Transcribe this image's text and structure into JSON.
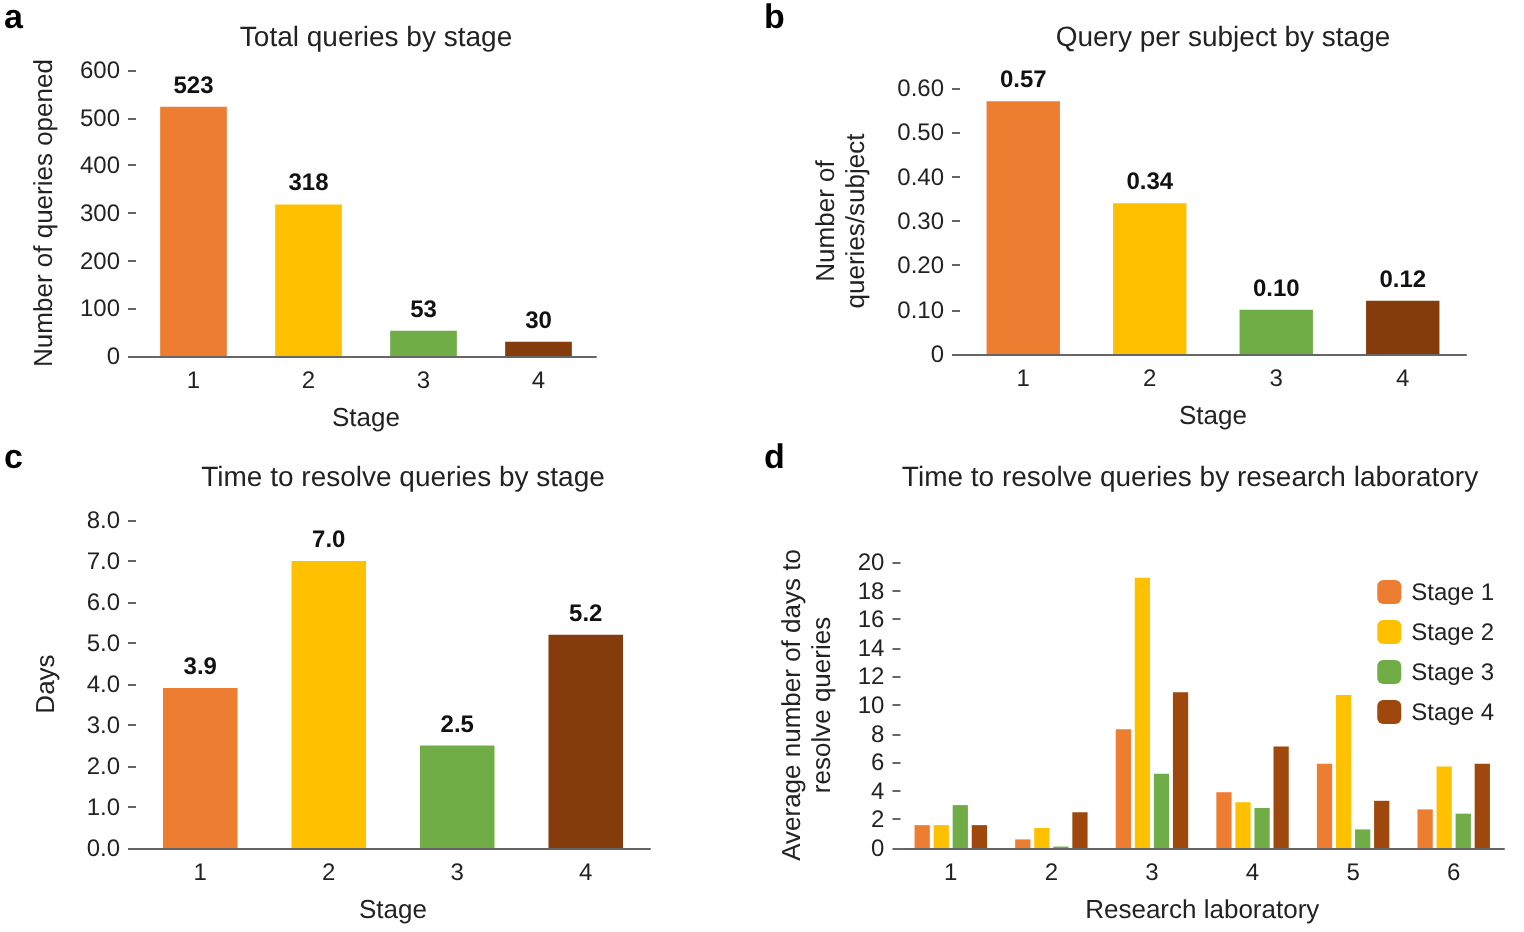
{
  "chart_data": [
    {
      "type": "bar",
      "title": "Total queries by stage",
      "xlabel": "Stage",
      "ylabel": "Number of queries opened",
      "annotations": [
        "a"
      ],
      "categories": [
        "1",
        "2",
        "3",
        "4"
      ],
      "values": [
        523,
        318,
        53,
        30
      ],
      "colors": [
        "#ed7d31",
        "#ffc000",
        "#70ad47",
        "#843c0c"
      ],
      "ylim": [
        0,
        600
      ],
      "yticks": [
        0,
        100,
        200,
        300,
        400,
        500,
        600
      ],
      "data_labels": true,
      "grid": false,
      "legend": false
    },
    {
      "type": "bar",
      "title": "Query per subject by stage",
      "xlabel": "Stage",
      "ylabel": "Number of queries/subject",
      "annotations": [
        "b"
      ],
      "categories": [
        "1",
        "2",
        "3",
        "4"
      ],
      "values": [
        0.57,
        0.34,
        0.1,
        0.12
      ],
      "value_labels": [
        "0.57",
        "0.34",
        "0.10",
        "0.12"
      ],
      "colors": [
        "#ed7d31",
        "#ffc000",
        "#70ad47",
        "#843c0c"
      ],
      "ylim": [
        0,
        0.6
      ],
      "yticks": [
        0,
        {
          "value": 0.1,
          "label": "0.10"
        },
        {
          "value": 0.2,
          "label": "0.20"
        },
        {
          "value": 0.3,
          "label": "0.30"
        },
        {
          "value": 0.4,
          "label": "0.40"
        },
        {
          "value": 0.5,
          "label": "0.50"
        },
        {
          "value": 0.6,
          "label": "0.60"
        }
      ],
      "grid": false,
      "legend": false
    },
    {
      "type": "bar",
      "title": "Time to resolve queries by stage",
      "xlabel": "Stage",
      "ylabel": "Days",
      "annotations": [
        "c"
      ],
      "categories": [
        "1",
        "2",
        "3",
        "4"
      ],
      "values": [
        3.9,
        7.0,
        2.5,
        5.2
      ],
      "value_labels": [
        "3.9",
        "7.0",
        "2.5",
        "5.2"
      ],
      "colors": [
        "#ed7d31",
        "#ffc000",
        "#70ad47",
        "#843c0c"
      ],
      "ylim": [
        0,
        8
      ],
      "yticks": [
        {
          "value": 0,
          "label": "0.0"
        },
        {
          "value": 1,
          "label": "1.0"
        },
        {
          "value": 2,
          "label": "2.0"
        },
        {
          "value": 3,
          "label": "3.0"
        },
        {
          "value": 4,
          "label": "4.0"
        },
        {
          "value": 5,
          "label": "5.0"
        },
        {
          "value": 6,
          "label": "6.0"
        },
        {
          "value": 7,
          "label": "7.0"
        },
        {
          "value": 8,
          "label": "8.0"
        }
      ],
      "grid": false,
      "legend": false
    },
    {
      "type": "bar",
      "title": "Time to resolve queries by research laboratory",
      "xlabel": "Research laboratory",
      "ylabel": "Average number of days to resolve queries",
      "annotations": [
        "d"
      ],
      "categories": [
        "1",
        "2",
        "3",
        "4",
        "5",
        "6"
      ],
      "series": [
        {
          "name": "Stage 1",
          "color": "#ed7d31",
          "values": [
            1.6,
            0.6,
            8.3,
            3.9,
            5.9,
            2.7
          ]
        },
        {
          "name": "Stage 2",
          "color": "#ffc000",
          "values": [
            1.6,
            1.4,
            18.9,
            3.2,
            10.7,
            5.7
          ]
        },
        {
          "name": "Stage 3",
          "color": "#70ad47",
          "values": [
            3.0,
            0.1,
            5.2,
            2.8,
            1.3,
            2.4
          ]
        },
        {
          "name": "Stage 4",
          "color": "#9e480e",
          "values": [
            1.6,
            2.5,
            10.9,
            7.1,
            3.3,
            5.9
          ]
        }
      ],
      "ylim": [
        0,
        20
      ],
      "yticks": [
        0,
        2,
        4,
        6,
        8,
        10,
        12,
        14,
        16,
        18,
        20
      ],
      "grid": false,
      "legend": "top right"
    }
  ]
}
